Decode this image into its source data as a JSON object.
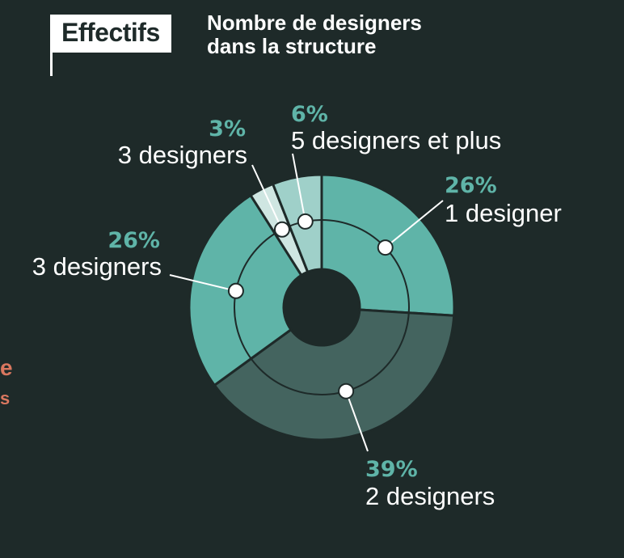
{
  "header": {
    "tag": "Effectifs",
    "subtitle_line1": "Nombre de designers",
    "subtitle_line2": "dans la structure"
  },
  "side_fragment": {
    "line1": "e",
    "line2": "s"
  },
  "chart_data": {
    "type": "pie",
    "variant": "donut",
    "slices": [
      {
        "label": "1 designer",
        "value": 26,
        "display": "26%",
        "color": "#5fb4a8"
      },
      {
        "label": "2 designers",
        "value": 39,
        "display": "39%",
        "color": "#44645f"
      },
      {
        "label": "3 designers",
        "value": 26,
        "display": "26%",
        "color": "#5fb4a8"
      },
      {
        "label": "3 designers",
        "value": 3,
        "display": "3%",
        "color": "#cfe6e2"
      },
      {
        "label": "5 designers et plus",
        "value": 6,
        "display": "6%",
        "color": "#9fd0c9"
      }
    ]
  }
}
